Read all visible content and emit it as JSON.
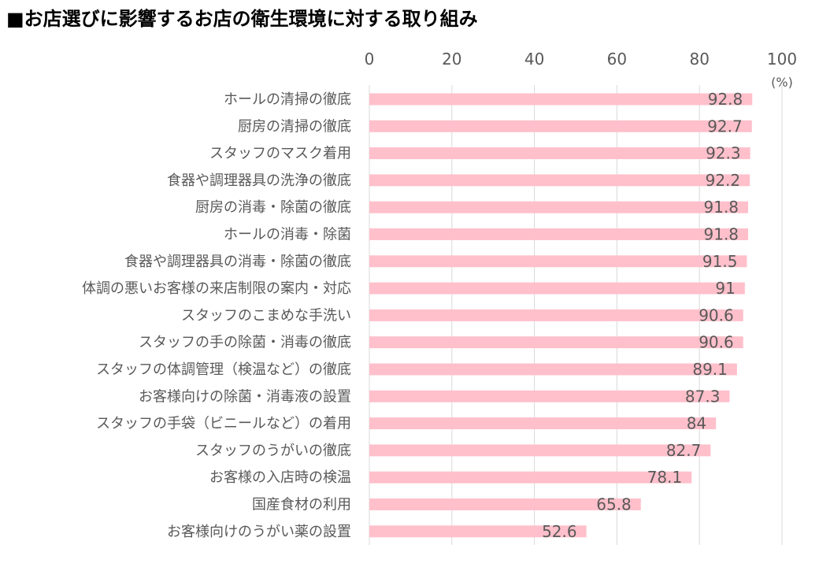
{
  "title": "■お店選びに影響するお店の衛生環境に対する取り組み",
  "chart_data": {
    "type": "bar",
    "orientation": "horizontal",
    "title": "■お店選びに影響するお店の衛生環境に対する取り組み",
    "unit": "(%)",
    "categories": [
      "ホールの清掃の徹底",
      "厨房の清掃の徹底",
      "スタッフのマスク着用",
      "食器や調理器具の洗浄の徹底",
      "厨房の消毒・除菌の徹底",
      "ホールの消毒・除菌",
      "食器や調理器具の消毒・除菌の徹底",
      "体調の悪いお客様の来店制限の案内・対応",
      "スタッフのこまめな手洗い",
      "スタッフの手の除菌・消毒の徹底",
      "スタッフの体調管理（検温など）の徹底",
      "お客様向けの除菌・消毒液の設置",
      "スタッフの手袋（ビニールなど）の着用",
      "スタッフのうがいの徹底",
      "お客様の入店時の検温",
      "国産食材の利用",
      "お客様向けのうがい薬の設置"
    ],
    "values": [
      92.8,
      92.7,
      92.3,
      92.2,
      91.8,
      91.8,
      91.5,
      91,
      90.6,
      90.6,
      89.1,
      87.3,
      84,
      82.7,
      78.1,
      65.8,
      52.6
    ],
    "value_labels": [
      "92.8",
      "92.7",
      "92.3",
      "92.2",
      "91.8",
      "91.8",
      "91.5",
      "91",
      "90.6",
      "90.6",
      "89.1",
      "87.3",
      "84",
      "82.7",
      "78.1",
      "65.8",
      "52.6"
    ],
    "xlim": [
      0,
      100
    ],
    "ticks": [
      0,
      20,
      40,
      60,
      80,
      100
    ],
    "tick_labels": [
      "0",
      "20",
      "40",
      "60",
      "80",
      "100"
    ],
    "axis_position": "top",
    "grid": true,
    "bar_color": "#ffc0cb",
    "grid_color": "#d9d9d9",
    "text_color": "#595959"
  }
}
